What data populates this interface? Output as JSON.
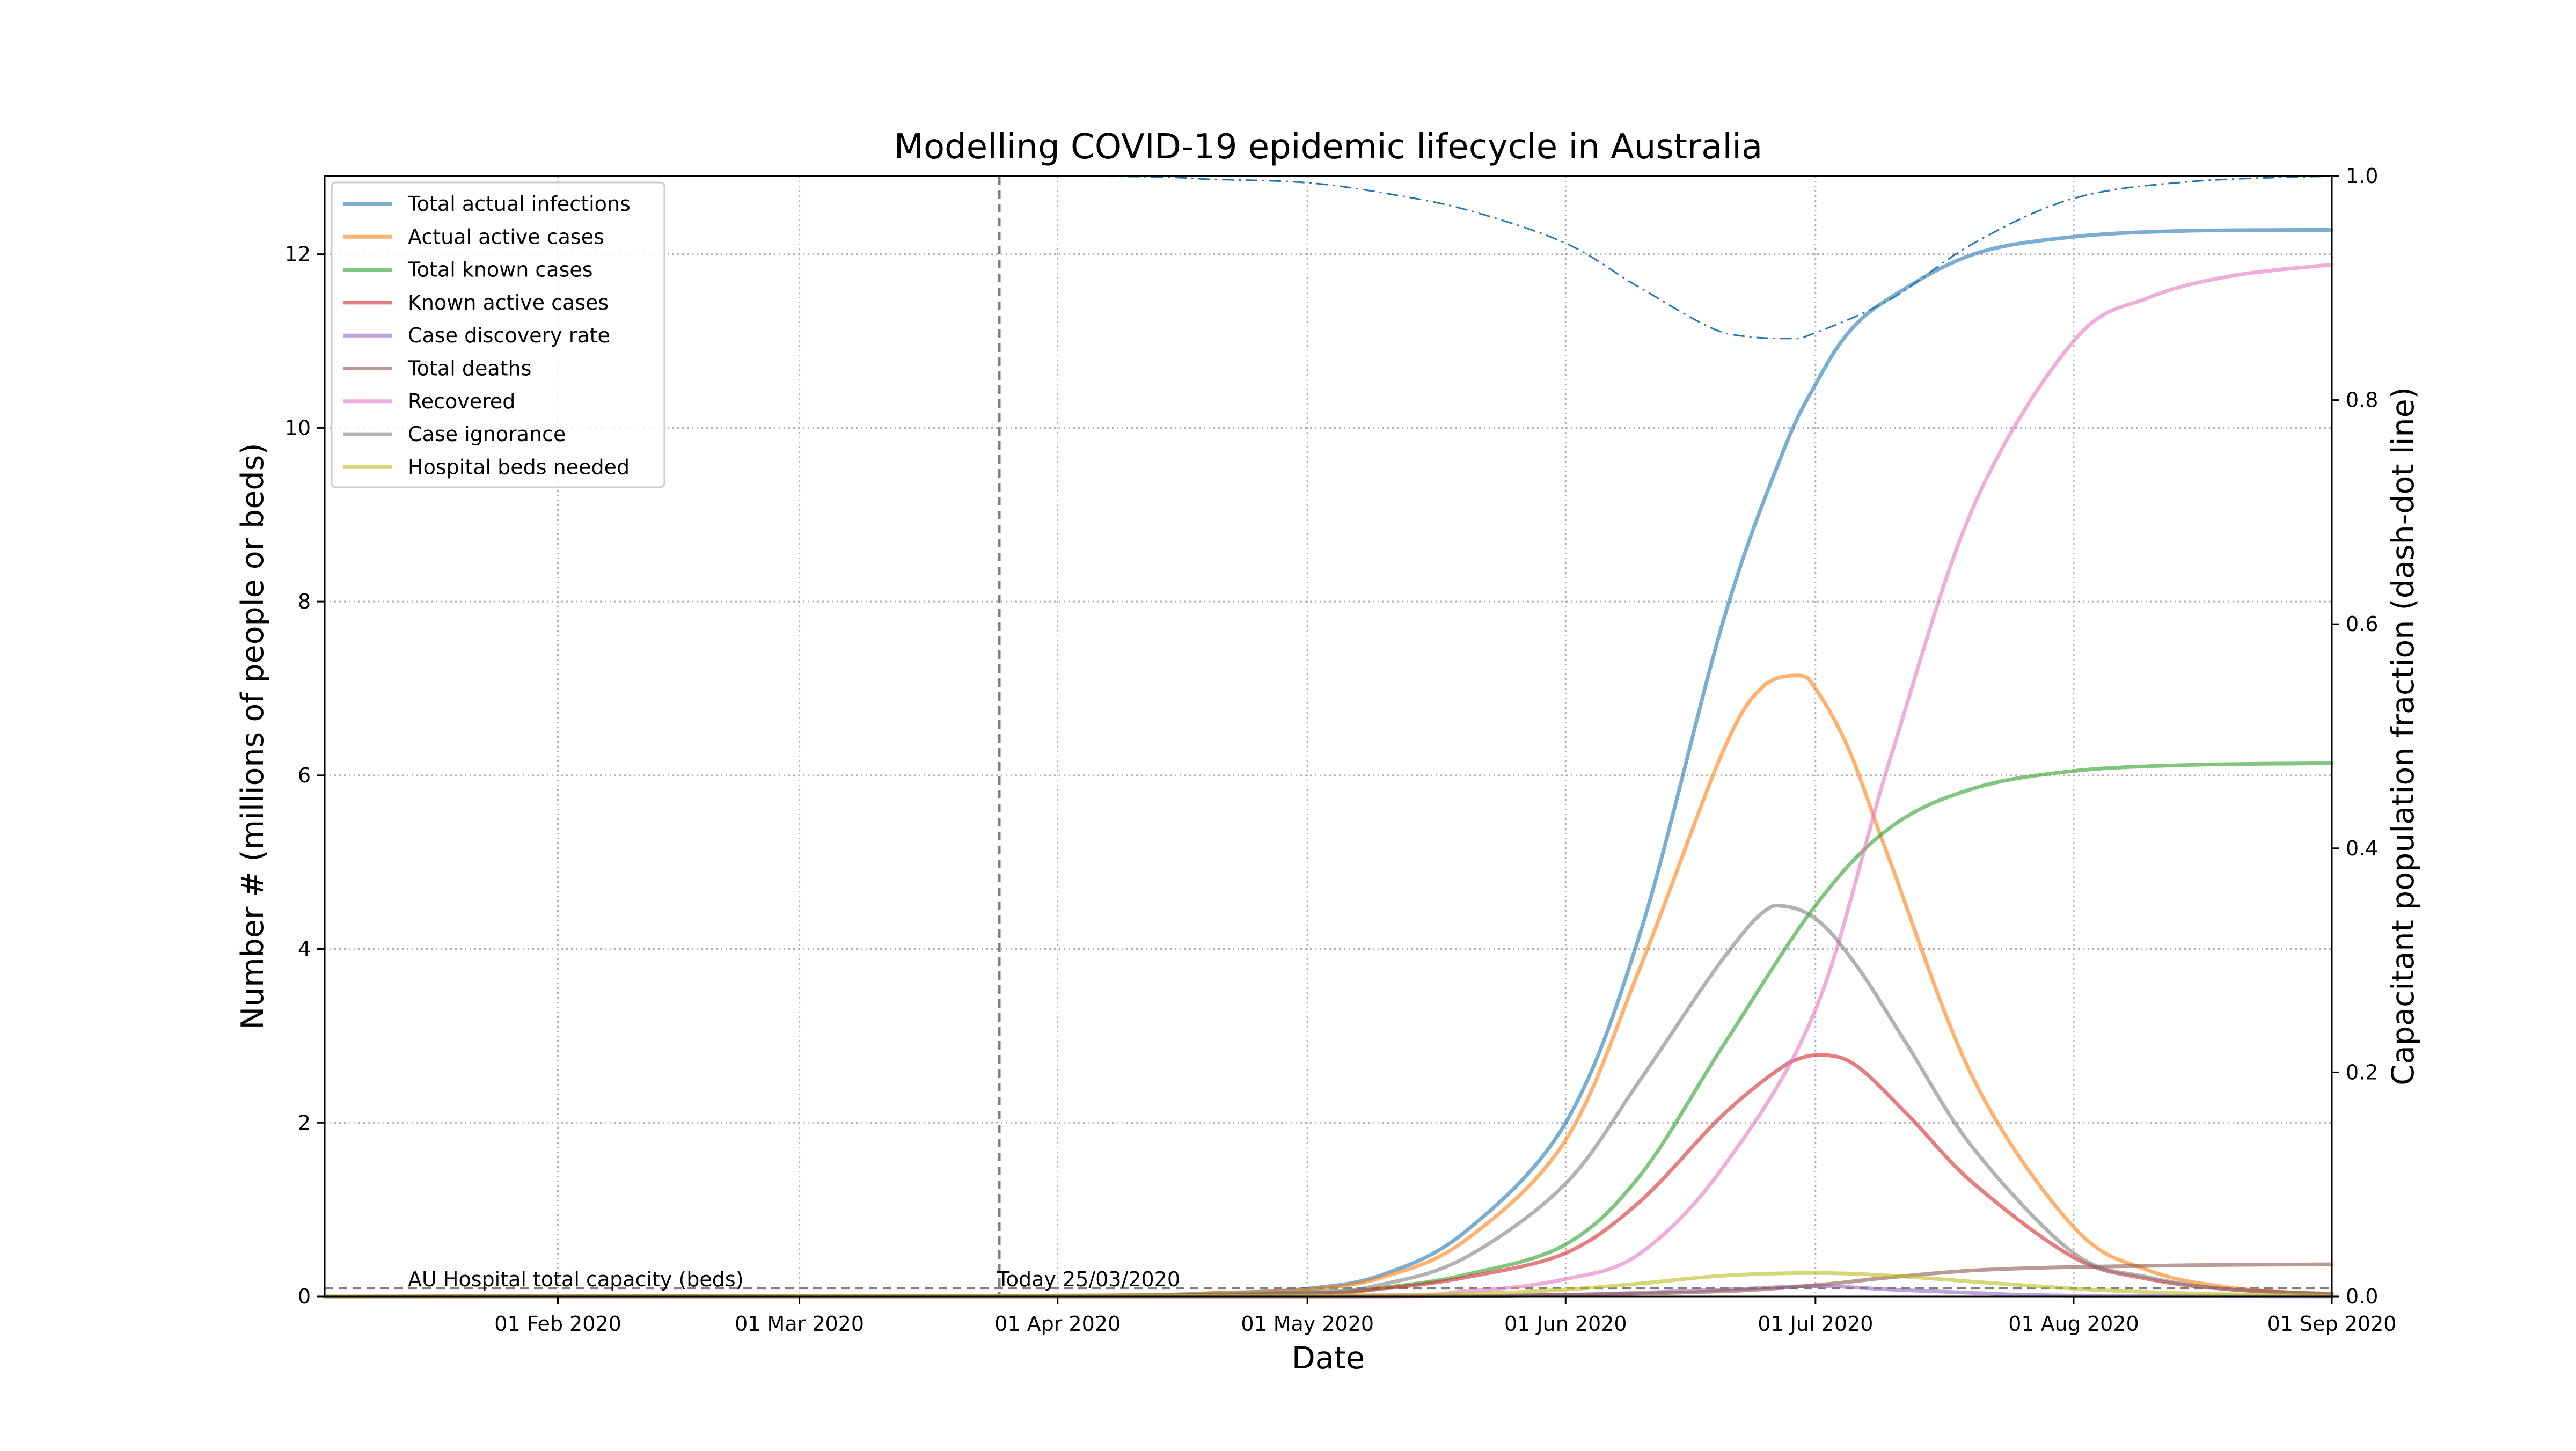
{
  "chart_data": {
    "type": "line",
    "title": "Modelling COVID-19 epidemic lifecycle in Australia",
    "xlabel": "Date",
    "ylabel": "Number # (millions of people or beds)",
    "ylabel_right": "Capacitant population fraction (dash-dot line)",
    "xlim": [
      "2020-01-04",
      "2020-09-01"
    ],
    "ylim": [
      0,
      12.9
    ],
    "ylim_right": [
      0,
      1.0
    ],
    "grid": true,
    "legend_position": "top-left",
    "x_ticks": [
      {
        "date": "2020-02-01",
        "label": "01 Feb 2020"
      },
      {
        "date": "2020-03-01",
        "label": "01 Mar 2020"
      },
      {
        "date": "2020-04-01",
        "label": "01 Apr 2020"
      },
      {
        "date": "2020-05-01",
        "label": "01 May 2020"
      },
      {
        "date": "2020-06-01",
        "label": "01 Jun 2020"
      },
      {
        "date": "2020-07-01",
        "label": "01 Jul 2020"
      },
      {
        "date": "2020-08-01",
        "label": "01 Aug 2020"
      },
      {
        "date": "2020-09-01",
        "label": "01 Sep 2020"
      }
    ],
    "y_ticks": [
      {
        "value": 0,
        "label": "0"
      },
      {
        "value": 2,
        "label": "2"
      },
      {
        "value": 4,
        "label": "4"
      },
      {
        "value": 6,
        "label": "6"
      },
      {
        "value": 8,
        "label": "8"
      },
      {
        "value": 10,
        "label": "10"
      },
      {
        "value": 12,
        "label": "12"
      }
    ],
    "y_ticks_right": [
      {
        "value": 0.0,
        "label": "0.0"
      },
      {
        "value": 0.2,
        "label": "0.2"
      },
      {
        "value": 0.4,
        "label": "0.4"
      },
      {
        "value": 0.6,
        "label": "0.6"
      },
      {
        "value": 0.8,
        "label": "0.8"
      },
      {
        "value": 1.0,
        "label": "1.0"
      }
    ],
    "series": [
      {
        "name": "Total actual infections",
        "color": "#1f77b4",
        "points": [
          [
            "2020-01-04",
            0
          ],
          [
            "2020-04-01",
            0.01
          ],
          [
            "2020-04-20",
            0.04
          ],
          [
            "2020-05-01",
            0.09
          ],
          [
            "2020-05-10",
            0.25
          ],
          [
            "2020-05-20",
            0.75
          ],
          [
            "2020-06-01",
            2.0
          ],
          [
            "2020-06-10",
            4.2
          ],
          [
            "2020-06-20",
            7.8
          ],
          [
            "2020-06-27",
            9.7
          ],
          [
            "2020-07-01",
            10.5
          ],
          [
            "2020-07-05",
            11.1
          ],
          [
            "2020-07-10",
            11.5
          ],
          [
            "2020-07-20",
            12.0
          ],
          [
            "2020-08-01",
            12.2
          ],
          [
            "2020-08-15",
            12.27
          ],
          [
            "2020-09-01",
            12.28
          ]
        ]
      },
      {
        "name": "Actual active cases",
        "color": "#ff7f0e",
        "points": [
          [
            "2020-01-04",
            0
          ],
          [
            "2020-04-01",
            0.01
          ],
          [
            "2020-04-20",
            0.04
          ],
          [
            "2020-05-01",
            0.08
          ],
          [
            "2020-05-10",
            0.22
          ],
          [
            "2020-05-20",
            0.65
          ],
          [
            "2020-06-01",
            1.8
          ],
          [
            "2020-06-10",
            3.8
          ],
          [
            "2020-06-20",
            6.3
          ],
          [
            "2020-06-25",
            7.05
          ],
          [
            "2020-06-29",
            7.15
          ],
          [
            "2020-07-01",
            7.0
          ],
          [
            "2020-07-05",
            6.3
          ],
          [
            "2020-07-10",
            5.0
          ],
          [
            "2020-07-20",
            2.5
          ],
          [
            "2020-08-01",
            0.8
          ],
          [
            "2020-08-10",
            0.3
          ],
          [
            "2020-08-20",
            0.1
          ],
          [
            "2020-09-01",
            0.02
          ]
        ]
      },
      {
        "name": "Total known cases",
        "color": "#2ca02c",
        "points": [
          [
            "2020-01-04",
            0
          ],
          [
            "2020-04-01",
            0.005
          ],
          [
            "2020-05-01",
            0.04
          ],
          [
            "2020-05-10",
            0.1
          ],
          [
            "2020-05-20",
            0.25
          ],
          [
            "2020-06-01",
            0.6
          ],
          [
            "2020-06-10",
            1.4
          ],
          [
            "2020-06-20",
            2.9
          ],
          [
            "2020-07-01",
            4.5
          ],
          [
            "2020-07-10",
            5.4
          ],
          [
            "2020-07-20",
            5.85
          ],
          [
            "2020-08-01",
            6.05
          ],
          [
            "2020-08-15",
            6.12
          ],
          [
            "2020-09-01",
            6.14
          ]
        ]
      },
      {
        "name": "Known active cases",
        "color": "#d62728",
        "points": [
          [
            "2020-01-04",
            0
          ],
          [
            "2020-04-01",
            0.005
          ],
          [
            "2020-05-01",
            0.035
          ],
          [
            "2020-05-10",
            0.09
          ],
          [
            "2020-05-20",
            0.22
          ],
          [
            "2020-06-01",
            0.5
          ],
          [
            "2020-06-10",
            1.1
          ],
          [
            "2020-06-20",
            2.1
          ],
          [
            "2020-06-28",
            2.7
          ],
          [
            "2020-07-02",
            2.78
          ],
          [
            "2020-07-06",
            2.65
          ],
          [
            "2020-07-12",
            2.1
          ],
          [
            "2020-07-20",
            1.3
          ],
          [
            "2020-08-01",
            0.45
          ],
          [
            "2020-08-10",
            0.2
          ],
          [
            "2020-08-20",
            0.08
          ],
          [
            "2020-09-01",
            0.03
          ]
        ]
      },
      {
        "name": "Case discovery rate",
        "color": "#9467bd",
        "points": [
          [
            "2020-01-04",
            0
          ],
          [
            "2020-05-01",
            0.0
          ],
          [
            "2020-06-01",
            0.02
          ],
          [
            "2020-06-20",
            0.08
          ],
          [
            "2020-07-01",
            0.12
          ],
          [
            "2020-07-10",
            0.08
          ],
          [
            "2020-07-20",
            0.04
          ],
          [
            "2020-08-01",
            0.01
          ],
          [
            "2020-09-01",
            0.0
          ]
        ]
      },
      {
        "name": "Total deaths",
        "color": "#8c564b",
        "points": [
          [
            "2020-01-04",
            0
          ],
          [
            "2020-05-01",
            0.0
          ],
          [
            "2020-06-01",
            0.02
          ],
          [
            "2020-06-20",
            0.06
          ],
          [
            "2020-07-01",
            0.13
          ],
          [
            "2020-07-10",
            0.22
          ],
          [
            "2020-07-20",
            0.3
          ],
          [
            "2020-08-01",
            0.34
          ],
          [
            "2020-08-15",
            0.36
          ],
          [
            "2020-09-01",
            0.37
          ]
        ]
      },
      {
        "name": "Recovered",
        "color": "#e377c2",
        "points": [
          [
            "2020-01-04",
            0
          ],
          [
            "2020-05-01",
            0.01
          ],
          [
            "2020-05-20",
            0.06
          ],
          [
            "2020-06-01",
            0.2
          ],
          [
            "2020-06-10",
            0.5
          ],
          [
            "2020-06-20",
            1.5
          ],
          [
            "2020-07-01",
            3.3
          ],
          [
            "2020-07-10",
            6.2
          ],
          [
            "2020-07-20",
            9.1
          ],
          [
            "2020-08-01",
            11.0
          ],
          [
            "2020-08-10",
            11.5
          ],
          [
            "2020-08-20",
            11.75
          ],
          [
            "2020-09-01",
            11.88
          ]
        ]
      },
      {
        "name": "Case ignorance",
        "color": "#7f7f7f",
        "points": [
          [
            "2020-01-04",
            0
          ],
          [
            "2020-04-01",
            0.005
          ],
          [
            "2020-05-01",
            0.05
          ],
          [
            "2020-05-10",
            0.14
          ],
          [
            "2020-05-20",
            0.45
          ],
          [
            "2020-06-01",
            1.3
          ],
          [
            "2020-06-10",
            2.5
          ],
          [
            "2020-06-20",
            3.9
          ],
          [
            "2020-06-26",
            4.5
          ],
          [
            "2020-07-01",
            4.35
          ],
          [
            "2020-07-06",
            3.8
          ],
          [
            "2020-07-12",
            2.9
          ],
          [
            "2020-07-20",
            1.7
          ],
          [
            "2020-08-01",
            0.5
          ],
          [
            "2020-08-10",
            0.22
          ],
          [
            "2020-08-20",
            0.08
          ],
          [
            "2020-09-01",
            0.03
          ]
        ]
      },
      {
        "name": "Hospital beds needed",
        "color": "#bcbd22",
        "points": [
          [
            "2020-01-04",
            0
          ],
          [
            "2020-05-01",
            0.01
          ],
          [
            "2020-05-20",
            0.03
          ],
          [
            "2020-06-01",
            0.08
          ],
          [
            "2020-06-10",
            0.15
          ],
          [
            "2020-06-20",
            0.24
          ],
          [
            "2020-07-01",
            0.27
          ],
          [
            "2020-07-10",
            0.24
          ],
          [
            "2020-07-20",
            0.17
          ],
          [
            "2020-08-01",
            0.09
          ],
          [
            "2020-08-10",
            0.05
          ],
          [
            "2020-08-20",
            0.025
          ],
          [
            "2020-09-01",
            0.01
          ]
        ]
      }
    ],
    "capacitant_fraction": {
      "color": "#1f77b4",
      "axis": "right",
      "points": [
        [
          "2020-01-04",
          1.0
        ],
        [
          "2020-04-01",
          1.0
        ],
        [
          "2020-04-20",
          0.997
        ],
        [
          "2020-05-01",
          0.994
        ],
        [
          "2020-05-10",
          0.985
        ],
        [
          "2020-05-20",
          0.97
        ],
        [
          "2020-06-01",
          0.94
        ],
        [
          "2020-06-10",
          0.9
        ],
        [
          "2020-06-20",
          0.86
        ],
        [
          "2020-06-28",
          0.855
        ],
        [
          "2020-07-01",
          0.86
        ],
        [
          "2020-07-10",
          0.89
        ],
        [
          "2020-07-20",
          0.94
        ],
        [
          "2020-08-01",
          0.98
        ],
        [
          "2020-08-15",
          0.995
        ],
        [
          "2020-09-01",
          1.0
        ]
      ]
    },
    "hospital_capacity": {
      "value": 0.095,
      "label": "AU Hospital total capacity (beds)"
    },
    "today_marker": {
      "date": "2020-03-25",
      "label": "Today 25/03/2020"
    }
  }
}
